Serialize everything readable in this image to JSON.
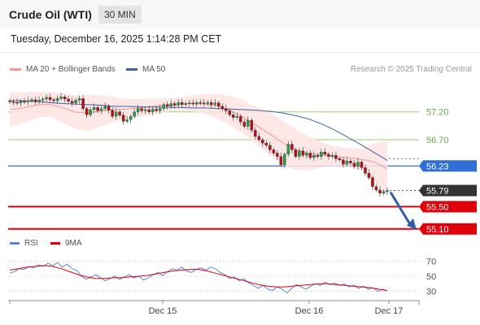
{
  "header": {
    "title": "Crude Oil (WTI)",
    "timeframe": "30 MIN"
  },
  "timestamp": "Tuesday, December 16, 2025 1:14:28 PM CET",
  "legend": {
    "bollinger": "MA 20 + Bollinger Bands",
    "ma50": "MA 50"
  },
  "credit": "Research © 2025 Trading Central",
  "rsi_legend": {
    "rsi": "RSI",
    "ma": "9MA"
  },
  "colors": {
    "bollinger": "#f29a9a",
    "bollinger_fill": "#fde3e3",
    "ma50": "#3f63a8",
    "support": "#e0000a",
    "pivot": "#2f6fd6",
    "resistance": "#9ad36a",
    "candle_up": "#25a149",
    "candle_down": "#b3121c",
    "current": "#333333",
    "rsi": "#5b84d6",
    "rsi_ma": "#e0000a",
    "arrow": "#2d5fa6"
  },
  "chart_data": [
    {
      "type": "candlestick",
      "title": "Crude Oil (WTI)",
      "interval": "30 MIN",
      "x_ticks": [
        "Dec 15",
        "Dec 16",
        "Dec 17"
      ],
      "ylim": [
        54.98,
        57.75
      ],
      "current_price": "55.79",
      "levels": [
        {
          "label": "57.20",
          "value": 57.2,
          "kind": "resistance"
        },
        {
          "label": "56.70",
          "value": 56.7,
          "kind": "resistance"
        },
        {
          "label": "56.23",
          "value": 56.23,
          "kind": "pivot"
        },
        {
          "label": "55.50",
          "value": 55.5,
          "kind": "support"
        },
        {
          "label": "55.10",
          "value": 55.1,
          "kind": "support"
        }
      ],
      "close": [
        57.38,
        57.37,
        57.36,
        57.39,
        57.38,
        57.4,
        57.42,
        57.38,
        57.41,
        57.43,
        57.46,
        57.42,
        57.4,
        57.44,
        57.47,
        57.43,
        57.39,
        57.36,
        57.41,
        57.44,
        57.26,
        57.15,
        57.24,
        57.28,
        57.22,
        57.26,
        57.3,
        57.23,
        57.12,
        57.2,
        57.14,
        57.03,
        57.06,
        57.12,
        57.2,
        57.26,
        57.22,
        57.24,
        57.2,
        57.25,
        57.22,
        57.26,
        57.33,
        57.3,
        57.35,
        57.32,
        57.37,
        57.33,
        57.35,
        57.36,
        57.34,
        57.37,
        57.36,
        57.35,
        57.37,
        57.33,
        57.36,
        57.3,
        57.26,
        57.22,
        57.15,
        57.1,
        57.12,
        57.02,
        56.94,
        57.05,
        56.87,
        56.76,
        56.7,
        56.64,
        56.6,
        56.52,
        56.46,
        56.4,
        56.25,
        56.44,
        56.62,
        56.52,
        56.4,
        56.5,
        56.42,
        56.46,
        56.38,
        56.42,
        56.4,
        56.48,
        56.44,
        56.4,
        56.42,
        56.36,
        56.34,
        56.26,
        56.32,
        56.28,
        56.22,
        56.3,
        56.2,
        56.1,
        56.02,
        55.86,
        55.8,
        55.74,
        55.77,
        55.79
      ],
      "ma50": [
        57.4,
        57.4,
        57.39,
        57.37,
        57.35,
        57.34,
        57.33,
        57.32,
        57.3,
        57.3,
        57.29,
        57.29,
        57.28,
        57.28,
        57.27,
        57.27,
        57.26,
        57.25,
        57.24,
        57.23,
        57.21,
        57.18,
        57.13,
        57.07,
        56.98,
        56.87,
        56.74,
        56.61,
        56.47,
        56.33
      ],
      "mid_band": [
        57.24,
        57.27,
        57.32,
        57.34,
        57.28,
        57.2,
        57.18,
        57.22,
        57.24,
        57.25,
        57.27,
        57.3,
        57.32,
        57.34,
        57.35,
        57.34,
        57.3,
        57.22,
        57.1,
        56.95,
        56.8,
        56.64,
        56.52,
        56.45,
        56.43,
        56.4,
        56.38,
        56.35,
        56.3,
        56.18
      ],
      "series": [
        {
          "name": "MA 20 + Bollinger Bands"
        },
        {
          "name": "MA 50"
        }
      ]
    },
    {
      "type": "line",
      "x_ticks": [
        "Dec 15",
        "Dec 16",
        "Dec 17"
      ],
      "ylim": [
        20,
        80
      ],
      "y_ticks": [
        70,
        50,
        30
      ],
      "rsi": [
        54,
        56,
        60,
        59,
        63,
        61,
        65,
        63,
        67,
        64,
        68,
        62,
        66,
        60,
        58,
        50,
        46,
        49,
        52,
        48,
        44,
        47,
        50,
        46,
        49,
        52,
        48,
        50,
        45,
        48,
        52,
        55,
        51,
        56,
        60,
        58,
        62,
        57,
        55,
        59,
        61,
        58,
        62,
        60,
        55,
        52,
        47,
        49,
        44,
        47,
        41,
        38,
        34,
        38,
        33,
        31,
        36,
        33,
        28,
        34,
        39,
        36,
        33,
        37,
        40,
        38,
        42,
        39,
        41,
        38,
        40,
        36,
        38,
        34,
        37,
        33,
        35,
        30,
        33,
        31
      ],
      "rsi_ma": [
        58,
        60,
        62,
        63,
        64,
        63,
        60,
        56,
        52,
        49,
        47,
        47,
        48,
        48,
        49,
        50,
        51,
        53,
        55,
        57,
        58,
        59,
        59,
        57,
        54,
        51,
        48,
        45,
        42,
        39,
        37,
        36,
        36,
        37,
        38,
        39,
        40,
        40,
        39,
        38,
        37,
        36,
        35,
        33,
        31
      ],
      "series": [
        {
          "name": "RSI"
        },
        {
          "name": "9MA"
        }
      ]
    }
  ]
}
